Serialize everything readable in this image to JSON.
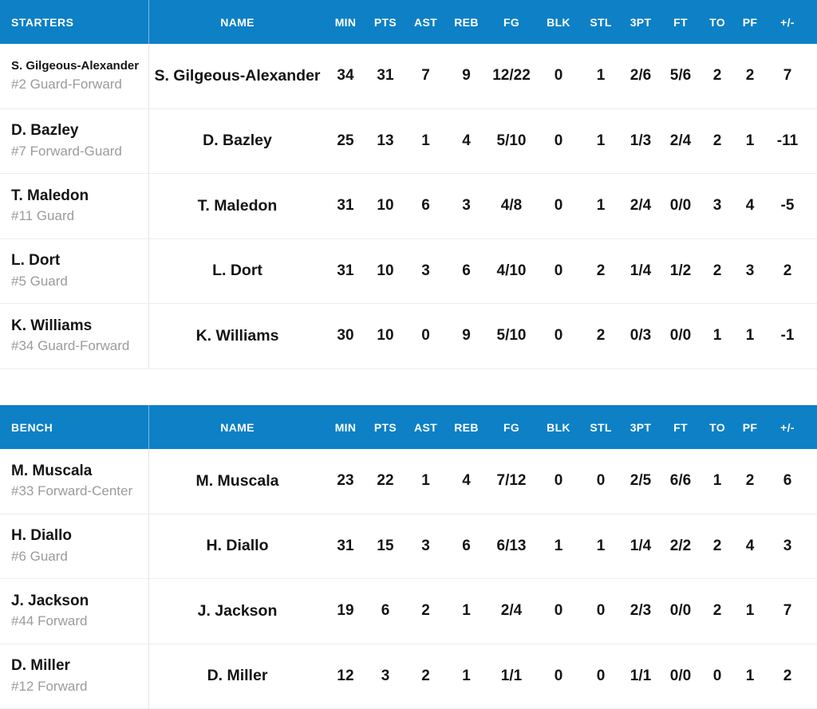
{
  "theme": {
    "header_bg": "#0d80c6",
    "header_text": "#ffffff",
    "player_name_color": "#141414",
    "player_detail_color": "#9b9b9b",
    "row_divider_color": "#ededed"
  },
  "columns": [
    "NAME",
    "MIN",
    "PTS",
    "AST",
    "REB",
    "FG",
    "BLK",
    "STL",
    "3PT",
    "FT",
    "TO",
    "PF",
    "+/-"
  ],
  "sections": [
    {
      "label": "STARTERS",
      "players": [
        {
          "name": "S. Gilgeous-Alexander",
          "detail": "#2 Guard-Forward",
          "stats": [
            "34",
            "31",
            "7",
            "9",
            "12/22",
            "0",
            "1",
            "2/6",
            "5/6",
            "2",
            "2",
            "7"
          ]
        },
        {
          "name": "D. Bazley",
          "detail": "#7 Forward-Guard",
          "stats": [
            "25",
            "13",
            "1",
            "4",
            "5/10",
            "0",
            "1",
            "1/3",
            "2/4",
            "2",
            "1",
            "-11"
          ]
        },
        {
          "name": "T. Maledon",
          "detail": "#11 Guard",
          "stats": [
            "31",
            "10",
            "6",
            "3",
            "4/8",
            "0",
            "1",
            "2/4",
            "0/0",
            "3",
            "4",
            "-5"
          ]
        },
        {
          "name": "L. Dort",
          "detail": "#5 Guard",
          "stats": [
            "31",
            "10",
            "3",
            "6",
            "4/10",
            "0",
            "2",
            "1/4",
            "1/2",
            "2",
            "3",
            "2"
          ]
        },
        {
          "name": "K. Williams",
          "detail": "#34 Guard-Forward",
          "stats": [
            "30",
            "10",
            "0",
            "9",
            "5/10",
            "0",
            "2",
            "0/3",
            "0/0",
            "1",
            "1",
            "-1"
          ]
        }
      ]
    },
    {
      "label": "BENCH",
      "players": [
        {
          "name": "M. Muscala",
          "detail": "#33 Forward-Center",
          "stats": [
            "23",
            "22",
            "1",
            "4",
            "7/12",
            "0",
            "0",
            "2/5",
            "6/6",
            "1",
            "2",
            "6"
          ]
        },
        {
          "name": "H. Diallo",
          "detail": "#6 Guard",
          "stats": [
            "31",
            "15",
            "3",
            "6",
            "6/13",
            "1",
            "1",
            "1/4",
            "2/2",
            "2",
            "4",
            "3"
          ]
        },
        {
          "name": "J. Jackson",
          "detail": "#44 Forward",
          "stats": [
            "19",
            "6",
            "2",
            "1",
            "2/4",
            "0",
            "0",
            "2/3",
            "0/0",
            "2",
            "1",
            "7"
          ]
        },
        {
          "name": "D. Miller",
          "detail": "#12 Forward",
          "stats": [
            "12",
            "3",
            "2",
            "1",
            "1/1",
            "0",
            "0",
            "1/1",
            "0/0",
            "0",
            "1",
            "2"
          ]
        }
      ]
    }
  ]
}
